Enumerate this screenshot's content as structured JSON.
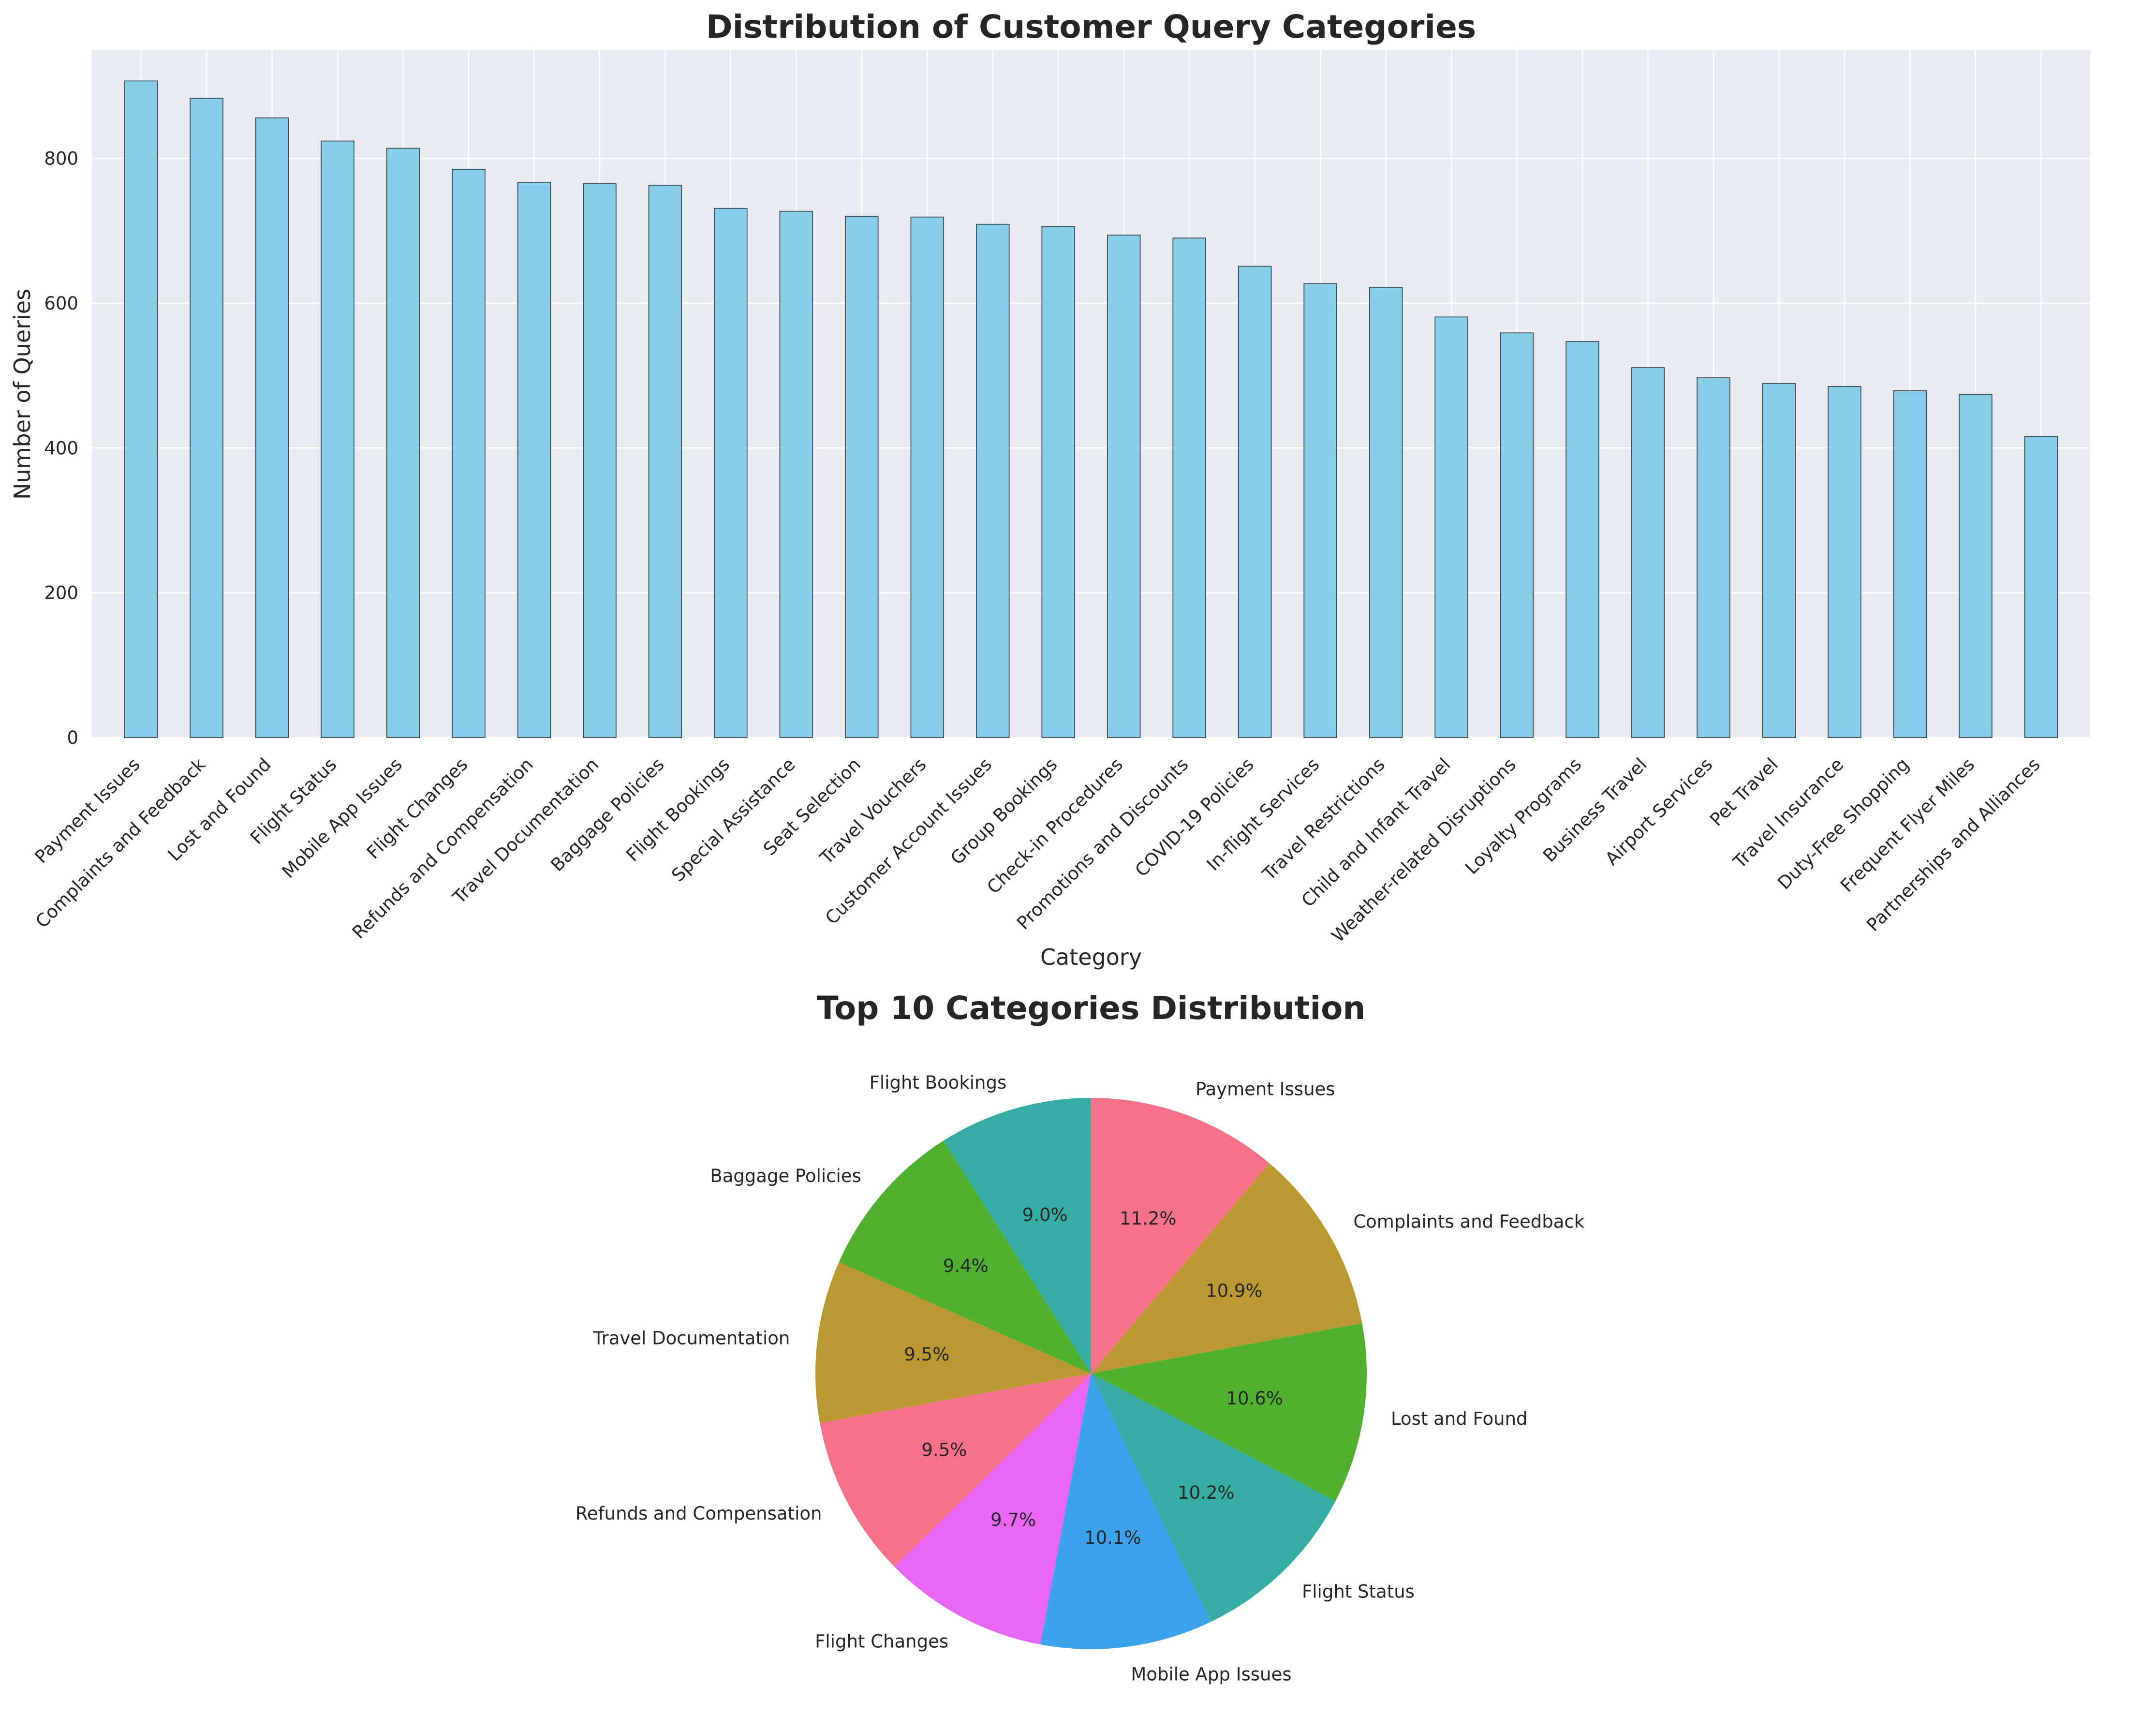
{
  "chart_data": [
    {
      "type": "bar",
      "title": "Distribution of Customer Query Categories",
      "xlabel": "Category",
      "ylabel": "Number of Queries",
      "ylim": [
        0,
        950
      ],
      "yticks": [
        0,
        200,
        400,
        600,
        800
      ],
      "grid": true,
      "bar_color": "#87ceeb",
      "edge_color": "#3a4a52",
      "background": "#eaeaf2",
      "categories": [
        "Payment Issues",
        "Complaints and Feedback",
        "Lost and Found",
        "Flight Status",
        "Mobile App Issues",
        "Flight Changes",
        "Refunds and Compensation",
        "Travel Documentation",
        "Baggage Policies",
        "Flight Bookings",
        "Special Assistance",
        "Seat Selection",
        "Travel Vouchers",
        "Customer Account Issues",
        "Group Bookings",
        "Check-in Procedures",
        "Promotions and Discounts",
        "COVID-19 Policies",
        "In-flight Services",
        "Travel Restrictions",
        "Child and Infant Travel",
        "Weather-related Disruptions",
        "Loyalty Programs",
        "Business Travel",
        "Airport Services",
        "Pet Travel",
        "Travel Insurance",
        "Duty-Free Shopping",
        "Frequent Flyer Miles",
        "Partnerships and Alliances"
      ],
      "values": [
        907,
        883,
        856,
        824,
        814,
        785,
        767,
        765,
        763,
        731,
        727,
        720,
        719,
        709,
        706,
        694,
        690,
        651,
        627,
        622,
        581,
        559,
        547,
        511,
        497,
        489,
        485,
        479,
        474,
        416
      ]
    },
    {
      "type": "pie",
      "title": "Top 10 Categories Distribution",
      "start_angle_deg": 90,
      "direction": "clockwise",
      "slices": [
        {
          "label": "Payment Issues",
          "percent": 11.2,
          "pct_text": "11.2%",
          "color": "#f77189"
        },
        {
          "label": "Complaints and Feedback",
          "percent": 10.9,
          "pct_text": "10.9%",
          "color": "#bb9832"
        },
        {
          "label": "Lost and Found",
          "percent": 10.6,
          "pct_text": "10.6%",
          "color": "#50b131"
        },
        {
          "label": "Flight Status",
          "percent": 10.2,
          "pct_text": "10.2%",
          "color": "#36ada4"
        },
        {
          "label": "Mobile App Issues",
          "percent": 10.1,
          "pct_text": "10.1%",
          "color": "#3ba3ec"
        },
        {
          "label": "Flight Changes",
          "percent": 9.7,
          "pct_text": "9.7%",
          "color": "#e866f4"
        },
        {
          "label": "Refunds and Compensation",
          "percent": 9.5,
          "pct_text": "9.5%",
          "color": "#f77189"
        },
        {
          "label": "Travel Documentation",
          "percent": 9.5,
          "pct_text": "9.5%",
          "color": "#bb9832"
        },
        {
          "label": "Baggage Policies",
          "percent": 9.4,
          "pct_text": "9.4%",
          "color": "#50b131"
        },
        {
          "label": "Flight Bookings",
          "percent": 9.0,
          "pct_text": "9.0%",
          "color": "#36ada4"
        }
      ]
    }
  ]
}
